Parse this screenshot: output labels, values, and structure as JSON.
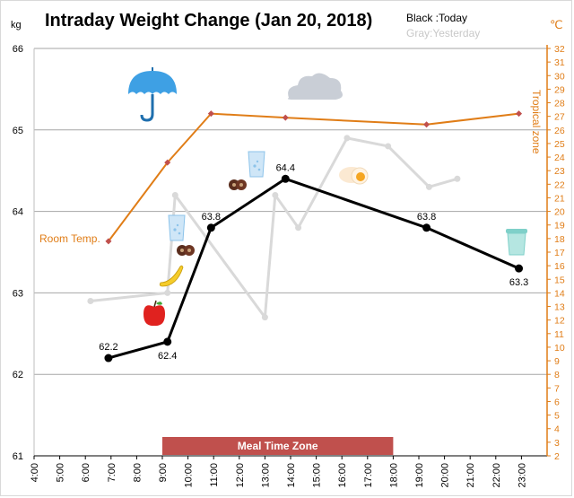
{
  "chart_data": {
    "type": "line",
    "title": "Intraday Weight Change (Jan 20, 2018)",
    "legend": {
      "today": "Black :Today",
      "yesterday": "Gray:Yesterday"
    },
    "y_left": {
      "unit": "kg",
      "range": [
        61,
        66
      ],
      "ticks": [
        61,
        62,
        63,
        64,
        65,
        66
      ]
    },
    "y_right": {
      "unit": "℃",
      "range": [
        2,
        32
      ],
      "ticks": [
        2,
        3,
        4,
        5,
        6,
        7,
        8,
        9,
        10,
        11,
        12,
        13,
        14,
        15,
        16,
        17,
        18,
        19,
        20,
        21,
        22,
        23,
        24,
        25,
        26,
        27,
        28,
        29,
        30,
        31,
        32
      ]
    },
    "x_axis": {
      "ticks": [
        "4:00",
        "5:00",
        "6:00",
        "7:00",
        "8:00",
        "9:00",
        "10:00",
        "11:00",
        "12:00",
        "13:00",
        "14:00",
        "15:00",
        "16:00",
        "17:00",
        "18:00",
        "19:00",
        "20:00",
        "21:00",
        "22:00",
        "23:00"
      ],
      "range_hours": [
        4,
        24
      ]
    },
    "series": [
      {
        "name": "Today",
        "color": "#000000",
        "points": [
          [
            6.9,
            62.2
          ],
          [
            9.2,
            62.4
          ],
          [
            10.9,
            63.8
          ],
          [
            13.8,
            64.4
          ],
          [
            19.3,
            63.8
          ],
          [
            22.9,
            63.3
          ]
        ],
        "labels": [
          "62.2",
          "62.4",
          "63.8",
          "64.4",
          "63.8",
          "63.3"
        ]
      },
      {
        "name": "Yesterday",
        "color": "#d9d9d9",
        "points": [
          [
            6.2,
            62.9
          ],
          [
            9.2,
            63.0
          ],
          [
            9.5,
            64.2
          ],
          [
            13.0,
            62.7
          ],
          [
            13.4,
            64.2
          ],
          [
            14.3,
            63.8
          ],
          [
            16.2,
            64.9
          ],
          [
            17.8,
            64.8
          ],
          [
            19.4,
            64.3
          ],
          [
            20.5,
            64.4
          ]
        ]
      },
      {
        "name": "Room Temp.",
        "color": "#e07d17",
        "axis": "right",
        "points": [
          [
            6.9,
            17.8
          ],
          [
            9.2,
            23.6
          ],
          [
            10.9,
            27.2
          ],
          [
            13.8,
            26.9
          ],
          [
            19.3,
            26.4
          ],
          [
            22.9,
            27.2
          ]
        ]
      }
    ],
    "annotations": {
      "room_temp": "Room Temp.",
      "tropical_zone": "Tropical zone",
      "meal_zone": "Meal Time Zone"
    },
    "meal_zone_hours": [
      9,
      18
    ],
    "icons": [
      "umbrella-icon",
      "cloud-icon",
      "water-glass-icon",
      "chocolate-icon",
      "egg-icon",
      "banana-icon",
      "apple-icon",
      "trash-can-icon"
    ],
    "grid": true,
    "colors": {
      "temperature": "#e07d17",
      "meal_zone": "#c0504d",
      "gridline": "#a6a6a6"
    }
  }
}
